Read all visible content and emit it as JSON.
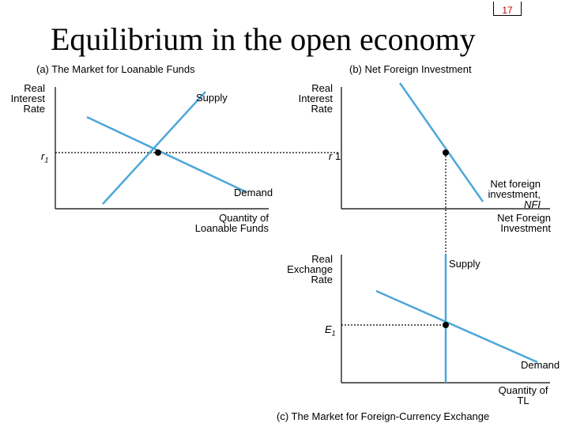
{
  "slide_number": "17",
  "title": "Equilibrium in the open economy",
  "panel_a": {
    "caption": "(a) The Market for Loanable Funds",
    "y_axis_label": [
      "Real",
      "Interest",
      "Rate"
    ],
    "x_axis_label": [
      "Quantity of",
      "Loanable Funds"
    ],
    "supply_label": "Supply",
    "demand_label": "Demand",
    "rate_label": "r",
    "rate_subscript": "1"
  },
  "panel_b": {
    "caption": "(b) Net Foreign Investment",
    "y_axis_label": [
      "Real",
      "Interest",
      "Rate"
    ],
    "x_axis_label": [
      "Net Foreign",
      "Investment"
    ],
    "curve_label": [
      "Net foreign",
      "investment,"
    ],
    "curve_label_italic": "NFI",
    "rate_label": "r",
    "rate_subscript": "1"
  },
  "panel_c": {
    "caption": "(c) The Market for Foreign-Currency Exchange",
    "y_axis_label": [
      "Real",
      "Exchange",
      "Rate"
    ],
    "x_axis_label": [
      "Quantity of",
      "TL"
    ],
    "supply_label": "Supply",
    "demand_label": "Demand",
    "rate_label": "E",
    "rate_subscript": "1"
  },
  "colors": {
    "curve": "#4da6d9",
    "axis": "#000000",
    "slide_number": "#c00000"
  }
}
